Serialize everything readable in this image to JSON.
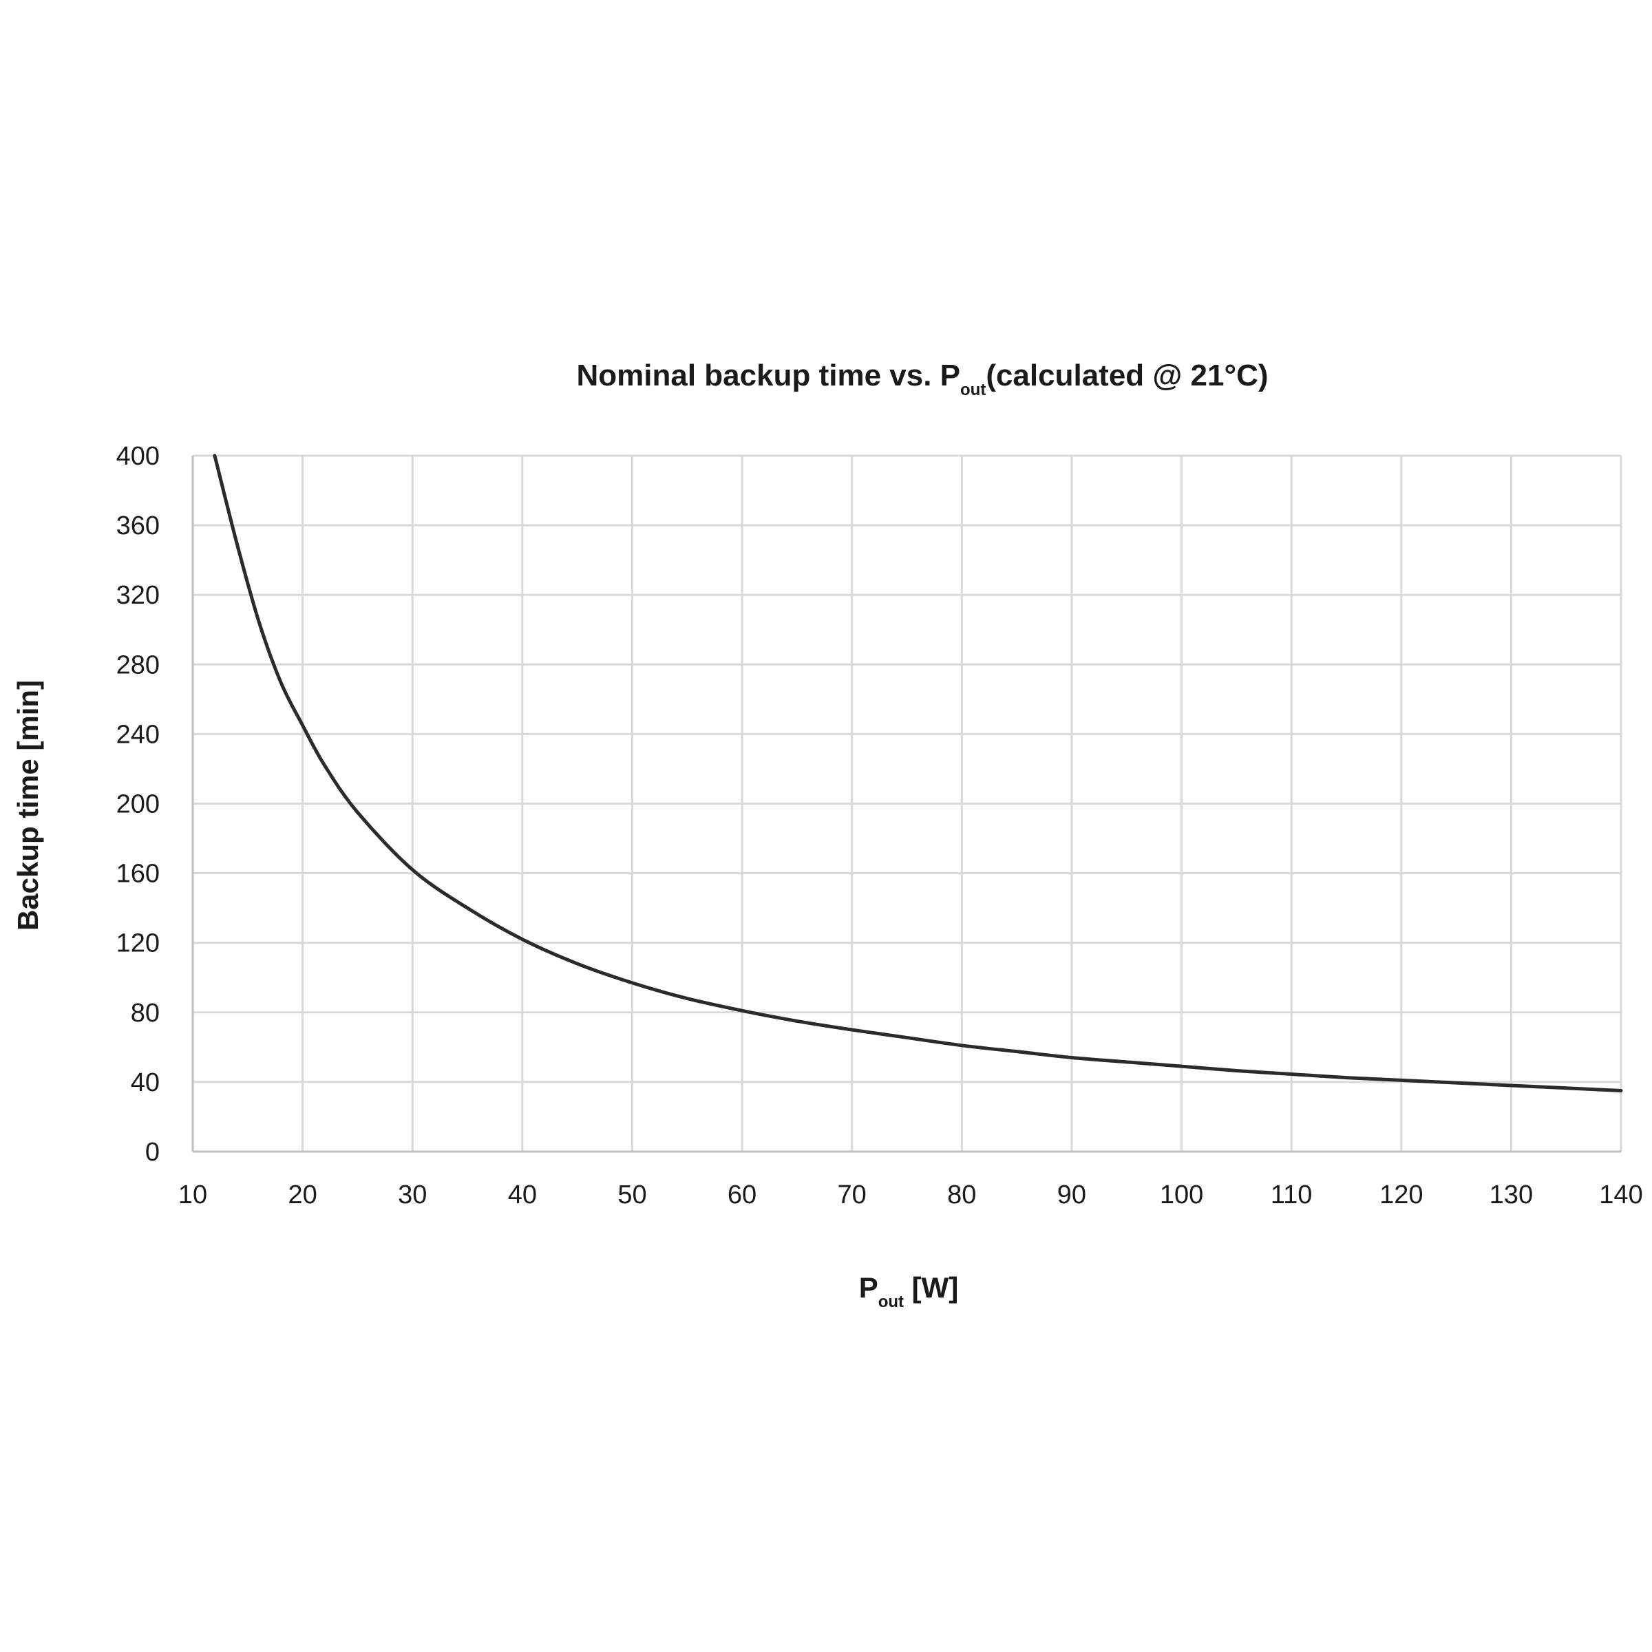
{
  "chart_data": {
    "type": "line",
    "title": {
      "main": "Nominal backup time vs. P",
      "main_sub": "out",
      "suffix": "(calculated @ 21°C)"
    },
    "xlabel": {
      "main": "P",
      "sub": "out",
      "suffix": " [W]"
    },
    "ylabel": "Backup time [min]",
    "xlim": [
      10,
      140
    ],
    "ylim": [
      0,
      400
    ],
    "x_ticks": [
      10,
      20,
      30,
      40,
      50,
      60,
      70,
      80,
      90,
      100,
      110,
      120,
      130,
      140
    ],
    "y_ticks": [
      0,
      40,
      80,
      120,
      160,
      200,
      240,
      280,
      320,
      360,
      400
    ],
    "x_tick_labels": [
      "10",
      "20",
      "30",
      "40",
      "50",
      "60",
      "70",
      "80",
      "90",
      "100",
      "110",
      "120",
      "130",
      "140"
    ],
    "y_tick_labels": [
      "0",
      "40",
      "80",
      "120",
      "160",
      "200",
      "240",
      "280",
      "320",
      "360",
      "400"
    ],
    "grid": true,
    "series": [
      {
        "color": "#2b2b2b",
        "x": [
          12,
          14,
          16,
          18,
          20,
          22,
          25,
          30,
          35,
          40,
          45,
          50,
          55,
          60,
          65,
          70,
          75,
          80,
          85,
          90,
          95,
          100,
          105,
          110,
          115,
          120,
          125,
          130,
          135,
          140
        ],
        "y": [
          400,
          350,
          305,
          270,
          245,
          222,
          195,
          162,
          140,
          122,
          108,
          97,
          88,
          81,
          75,
          70,
          65.5,
          61,
          57.5,
          54,
          51.5,
          49,
          46.5,
          44.5,
          42.5,
          41,
          39.5,
          38,
          36.5,
          35
        ]
      }
    ]
  }
}
